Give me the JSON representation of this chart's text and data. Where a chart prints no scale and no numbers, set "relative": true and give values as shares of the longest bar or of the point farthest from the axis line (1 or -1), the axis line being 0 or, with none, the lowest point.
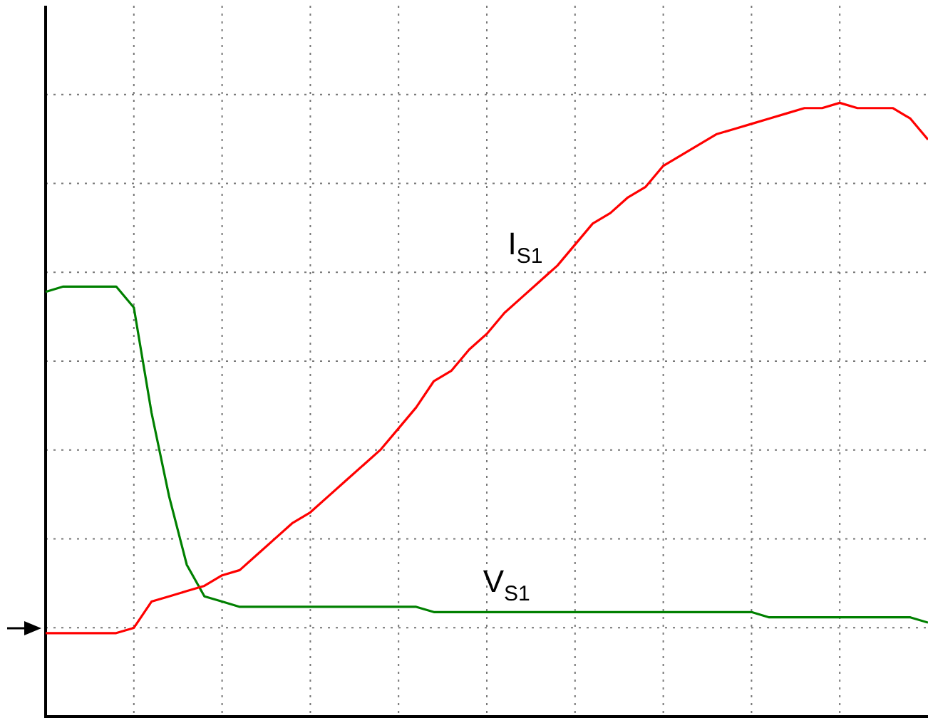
{
  "chart_data": {
    "type": "line",
    "relative": true,
    "grid": true,
    "legend": false,
    "marker": "none",
    "line_style": "solid",
    "categories": [
      null,
      null,
      null,
      null,
      null,
      null,
      null,
      null,
      null,
      null,
      null,
      null,
      null,
      null,
      null,
      null,
      null,
      null,
      null,
      null,
      null,
      null,
      null,
      null,
      null,
      null,
      null,
      null,
      null,
      null,
      null,
      null,
      null,
      null,
      null,
      null,
      null,
      null,
      null,
      null,
      null,
      null,
      null,
      null,
      null,
      null,
      null,
      null,
      null,
      null,
      null
    ],
    "series": [
      {
        "name": "I$_{S1}$",
        "color": "#ff0000",
        "values": [
          -0.01,
          -0.01,
          -0.01,
          -0.01,
          -0.01,
          0.0,
          0.05,
          0.06,
          0.07,
          0.08,
          0.1,
          0.11,
          0.14,
          0.17,
          0.2,
          0.22,
          0.25,
          0.28,
          0.31,
          0.34,
          0.38,
          0.42,
          0.47,
          0.49,
          0.53,
          0.56,
          0.6,
          0.63,
          0.66,
          0.69,
          0.73,
          0.77,
          0.79,
          0.82,
          0.84,
          0.88,
          0.9,
          0.92,
          0.94,
          0.95,
          0.96,
          0.97,
          0.98,
          0.99,
          0.99,
          1.0,
          0.99,
          0.99,
          0.99,
          0.97,
          0.93
        ]
      },
      {
        "name": "V$_{S1}$",
        "color": "#008000",
        "values": [
          0.64,
          0.65,
          0.65,
          0.65,
          0.65,
          0.61,
          0.41,
          0.25,
          0.12,
          0.06,
          0.05,
          0.04,
          0.04,
          0.04,
          0.04,
          0.04,
          0.04,
          0.04,
          0.04,
          0.04,
          0.04,
          0.04,
          0.03,
          0.03,
          0.03,
          0.03,
          0.03,
          0.03,
          0.03,
          0.03,
          0.03,
          0.03,
          0.03,
          0.03,
          0.03,
          0.03,
          0.03,
          0.03,
          0.03,
          0.03,
          0.03,
          0.02,
          0.02,
          0.02,
          0.02,
          0.02,
          0.02,
          0.02,
          0.02,
          0.02,
          0.01
        ]
      }
    ]
  }
}
